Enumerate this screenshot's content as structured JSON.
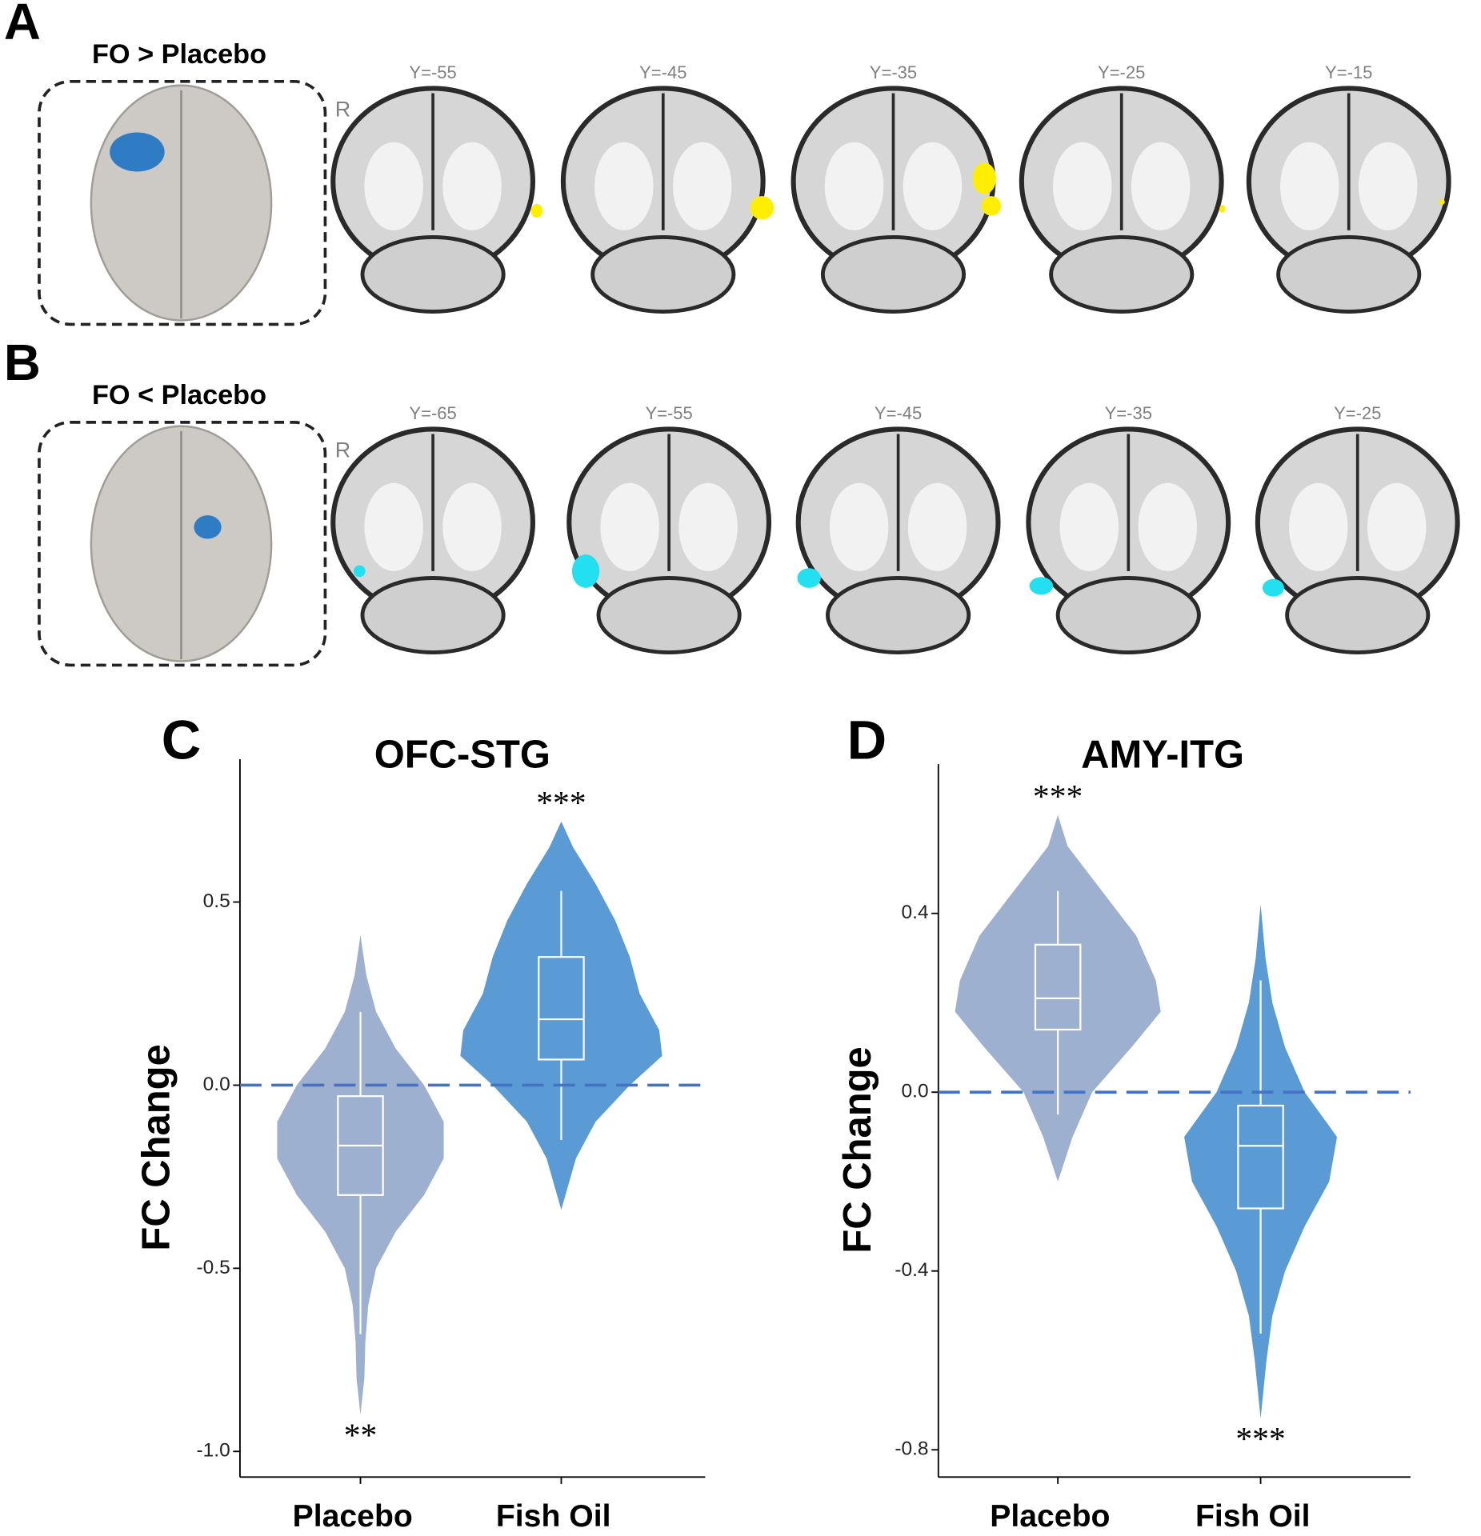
{
  "panels": [
    {
      "letter": "A",
      "title": "FO > Placebo",
      "side": "R",
      "slices": [
        "Y=-55",
        "Y=-45",
        "Y=-35",
        "Y=-25",
        "Y=-15"
      ]
    },
    {
      "letter": "B",
      "title": "FO < Placebo",
      "side": "R",
      "slices": [
        "Y=-65",
        "Y=-55",
        "Y=-45",
        "Y=-35",
        "Y=-25"
      ]
    }
  ],
  "chart_data": [
    {
      "type": "violin",
      "letter": "C",
      "title": "OFC-STG",
      "ylabel": "FC Change",
      "categories": [
        "Placebo",
        "Fish Oil"
      ],
      "colors": [
        "#9eb0cf",
        "#5b9bd5"
      ],
      "ylim": [
        -1.07,
        0.89
      ],
      "yticks": [
        0.5,
        {
          "value": 0,
          "label": "0.0"
        },
        -0.5,
        {
          "value": -1,
          "label": "-1.0"
        }
      ],
      "reference_line": 0,
      "reference_color": "#4472c4",
      "groups": [
        {
          "box": {
            "whisker_low": -0.68,
            "q1": -0.3,
            "median": -0.165,
            "q3": -0.03,
            "whisker_high": 0.2
          },
          "violin": {
            "y": [
              0.41,
              0.3,
              0.2,
              0.1,
              0.0,
              -0.1,
              -0.2,
              -0.3,
              -0.4,
              -0.5,
              -0.6,
              -0.7,
              -0.8,
              -0.9
            ],
            "width": [
              0,
              6,
              16,
              36,
              65,
              85,
              85,
              65,
              36,
              16,
              8,
              5,
              4,
              0
            ]
          },
          "annotation": "**",
          "annotation_position": "bottom"
        },
        {
          "box": {
            "whisker_low": -0.15,
            "q1": 0.07,
            "median": 0.18,
            "q3": 0.35,
            "whisker_high": 0.53
          },
          "violin": {
            "y": [
              0.72,
              0.65,
              0.55,
              0.45,
              0.35,
              0.25,
              0.15,
              0.08,
              0.0,
              -0.1,
              -0.2,
              -0.34
            ],
            "width": [
              0,
              12,
              35,
              55,
              70,
              80,
              100,
              103,
              70,
              35,
              15,
              0
            ]
          },
          "annotation": "***",
          "annotation_position": "top"
        }
      ]
    },
    {
      "type": "violin",
      "letter": "D",
      "title": "AMY-ITG",
      "ylabel": "FC Change",
      "categories": [
        "Placebo",
        "Fish Oil"
      ],
      "colors": [
        "#9eb0cf",
        "#5b9bd5"
      ],
      "ylim": [
        -0.861,
        0.734
      ],
      "yticks": [
        0.4,
        {
          "value": 0,
          "label": "0.0"
        },
        -0.4,
        -0.8
      ],
      "reference_line": 0,
      "reference_color": "#4472c4",
      "groups": [
        {
          "box": {
            "whisker_low": -0.05,
            "q1": 0.14,
            "median": 0.21,
            "q3": 0.33,
            "whisker_high": 0.45
          },
          "violin": {
            "y": [
              0.62,
              0.55,
              0.45,
              0.35,
              0.25,
              0.18,
              0.1,
              0.0,
              -0.1,
              -0.2
            ],
            "width": [
              0,
              10,
              45,
              80,
              100,
              105,
              75,
              35,
              15,
              0
            ]
          },
          "annotation": "***",
          "annotation_position": "top"
        },
        {
          "box": {
            "whisker_low": -0.54,
            "q1": -0.26,
            "median": -0.12,
            "q3": -0.03,
            "whisker_high": 0.25
          },
          "violin": {
            "y": [
              0.42,
              0.3,
              0.2,
              0.1,
              0.0,
              -0.1,
              -0.2,
              -0.3,
              -0.4,
              -0.5,
              -0.6,
              -0.73
            ],
            "width": [
              0,
              5,
              12,
              25,
              45,
              78,
              70,
              45,
              25,
              12,
              6,
              0
            ]
          },
          "annotation": "***",
          "annotation_position": "bottom"
        }
      ]
    }
  ]
}
